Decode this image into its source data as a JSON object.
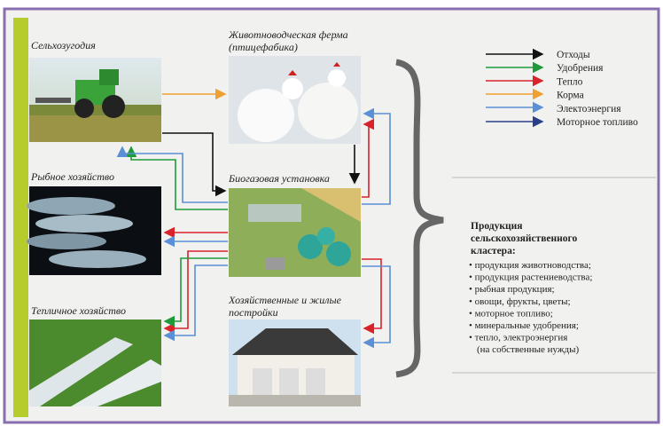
{
  "nodes": [
    {
      "label": [
        "Сельхозугодия"
      ]
    },
    {
      "label": [
        "Животноводческая ферма",
        "(птицефабика)"
      ]
    },
    {
      "label": [
        "Рыбное хозяйство"
      ]
    },
    {
      "label": [
        "Биогазовая установка"
      ]
    },
    {
      "label": [
        "Тепличное хозяйство"
      ]
    },
    {
      "label": [
        "Хозяйственные и жилые",
        "постройки"
      ]
    }
  ],
  "legend": [
    "Отходы",
    "Удобрения",
    "Тепло",
    "Корма",
    "Электоэнергия",
    "Моторное топливо"
  ],
  "products": {
    "title": [
      "Продукция",
      "сельскохозяйственного",
      "кластера:"
    ],
    "items": [
      "• продукция животноводства;",
      "• продукция растениеводства;",
      "• рыбная продукция;",
      "• овощи, фрукты, цветы;",
      "• моторное топливо;",
      "• минеральные удобрения;",
      "• тепло, электроэнергия",
      "(на собственные нужды)"
    ]
  }
}
